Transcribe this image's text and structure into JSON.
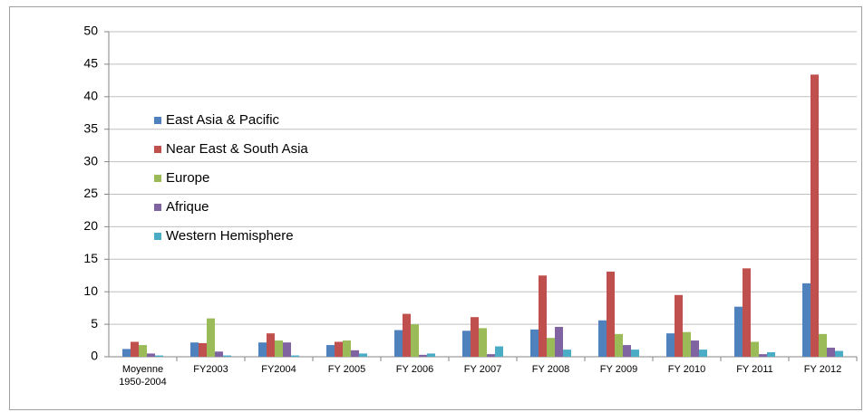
{
  "chart_data": {
    "type": "bar",
    "categories": [
      "Moyenne 1950-2004",
      "FY2003",
      "FY2004",
      "FY 2005",
      "FY 2006",
      "FY 2007",
      "FY 2008",
      "FY 2009",
      "FY 2010",
      "FY 2011",
      "FY 2012"
    ],
    "series": [
      {
        "name": "East Asia & Pacific",
        "color": "#4f81bd",
        "values": [
          1.2,
          2.2,
          2.2,
          1.8,
          4.1,
          4.0,
          4.2,
          5.6,
          3.6,
          7.7,
          11.3
        ]
      },
      {
        "name": "Near East & South Asia",
        "color": "#c0504d",
        "values": [
          2.3,
          2.1,
          3.6,
          2.3,
          6.6,
          6.1,
          12.5,
          13.1,
          9.5,
          13.6,
          43.4
        ]
      },
      {
        "name": "Europe",
        "color": "#9bbb59",
        "values": [
          1.8,
          5.9,
          2.5,
          2.5,
          5.0,
          4.4,
          2.9,
          3.5,
          3.8,
          2.3,
          3.5
        ]
      },
      {
        "name": "Afrique",
        "color": "#8064a2",
        "values": [
          0.5,
          0.8,
          2.2,
          1.0,
          0.3,
          0.4,
          4.6,
          1.8,
          2.5,
          0.4,
          1.4
        ]
      },
      {
        "name": "Western Hemisphere",
        "color": "#4bacc6",
        "values": [
          0.2,
          0.2,
          0.2,
          0.5,
          0.5,
          1.6,
          1.1,
          1.1,
          1.1,
          0.7,
          0.9
        ]
      }
    ],
    "ylim": [
      0,
      50
    ],
    "yticks": [
      0,
      5,
      10,
      15,
      20,
      25,
      30,
      35,
      40,
      45,
      50
    ],
    "grid": true,
    "legend": "left"
  }
}
